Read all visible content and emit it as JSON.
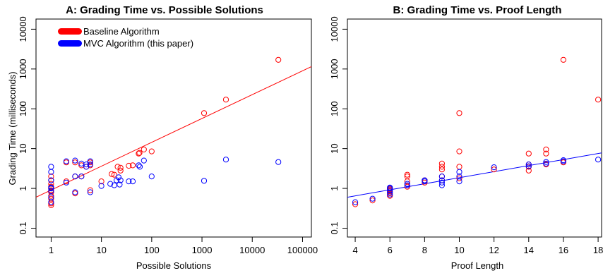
{
  "chart_data": [
    {
      "type": "scatter",
      "title": "A: Grading Time vs. Possible Solutions",
      "xlabel": "Possible Solutions",
      "ylabel": "Grading Time (milliseconds)",
      "xscale": "log",
      "yscale": "log",
      "xlim": [
        0.5,
        150000
      ],
      "ylim": [
        0.06,
        18000
      ],
      "x_ticks": [
        1,
        10,
        100,
        1000,
        10000,
        100000
      ],
      "x_tick_labels": [
        "1",
        "10",
        "100",
        "1000",
        "10000",
        "100000"
      ],
      "y_ticks": [
        0.1,
        1,
        10,
        100,
        1000,
        10000
      ],
      "y_tick_labels": [
        "0.1",
        "1",
        "10",
        "100",
        "1000",
        "10000"
      ],
      "legend": {
        "position": "top-left",
        "entries": [
          {
            "label": "Baseline Algorithm",
            "color": "#ff0000"
          },
          {
            "label": "MVC Algorithm (this paper)",
            "color": "#0000ff"
          }
        ]
      },
      "series": [
        {
          "name": "Baseline Algorithm",
          "color": "#ff0000",
          "points": [
            [
              1,
              0.38
            ],
            [
              1,
              0.42
            ],
            [
              1,
              0.55
            ],
            [
              1,
              0.65
            ],
            [
              1,
              0.8
            ],
            [
              1,
              0.9
            ],
            [
              1,
              1.0
            ],
            [
              1,
              1.1
            ],
            [
              1,
              1.3
            ],
            [
              1,
              1.6
            ],
            [
              1,
              2.0
            ],
            [
              2,
              1.5
            ],
            [
              2,
              4.5
            ],
            [
              3,
              0.75
            ],
            [
              3,
              2.0
            ],
            [
              3,
              4.5
            ],
            [
              4,
              2.0
            ],
            [
              4,
              3.8
            ],
            [
              5,
              3.5
            ],
            [
              6,
              0.9
            ],
            [
              6,
              3.8
            ],
            [
              6,
              4.5
            ],
            [
              10,
              1.5
            ],
            [
              16,
              2.3
            ],
            [
              18,
              2.2
            ],
            [
              21,
              3.5
            ],
            [
              24,
              2.8
            ],
            [
              24,
              3.3
            ],
            [
              35,
              3.7
            ],
            [
              42,
              3.8
            ],
            [
              55,
              7.5
            ],
            [
              57,
              7.8
            ],
            [
              70,
              9.5
            ],
            [
              100,
              8.5
            ],
            [
              1100,
              78
            ],
            [
              3000,
              170
            ],
            [
              33000,
              1700
            ]
          ]
        },
        {
          "name": "MVC Algorithm (this paper)",
          "color": "#0000ff",
          "points": [
            [
              1,
              0.45
            ],
            [
              1,
              0.6
            ],
            [
              1,
              0.85
            ],
            [
              1,
              1.0
            ],
            [
              1,
              1.05
            ],
            [
              1,
              1.6
            ],
            [
              1,
              2.6
            ],
            [
              1,
              3.5
            ],
            [
              2,
              1.4
            ],
            [
              2,
              4.8
            ],
            [
              3,
              0.8
            ],
            [
              3,
              2.0
            ],
            [
              3,
              5.0
            ],
            [
              4,
              2.0
            ],
            [
              4,
              4.2
            ],
            [
              5,
              3.5
            ],
            [
              5,
              4.0
            ],
            [
              6,
              0.8
            ],
            [
              6,
              4.0
            ],
            [
              6,
              4.8
            ],
            [
              10,
              1.15
            ],
            [
              15,
              1.3
            ],
            [
              18,
              1.2
            ],
            [
              20,
              1.6
            ],
            [
              22,
              1.9
            ],
            [
              23,
              1.25
            ],
            [
              24,
              1.6
            ],
            [
              35,
              1.5
            ],
            [
              42,
              1.5
            ],
            [
              55,
              3.8
            ],
            [
              58,
              3.5
            ],
            [
              70,
              5.0
            ],
            [
              100,
              2.0
            ],
            [
              1100,
              1.55
            ],
            [
              3000,
              5.3
            ],
            [
              33000,
              4.6
            ]
          ]
        }
      ],
      "fit_line": {
        "color": "#ff0000",
        "points": [
          [
            0.5,
            0.6
          ],
          [
            150000,
            1150
          ]
        ]
      }
    },
    {
      "type": "scatter",
      "title": "B: Grading Time vs. Proof Length",
      "xlabel": "Proof Length",
      "ylabel": "",
      "xscale": "linear",
      "yscale": "log",
      "xlim": [
        3.55,
        18.2
      ],
      "ylim": [
        0.06,
        18000
      ],
      "x_ticks": [
        4,
        6,
        8,
        10,
        12,
        14,
        16,
        18
      ],
      "x_tick_labels": [
        "4",
        "6",
        "8",
        "10",
        "12",
        "14",
        "16",
        "18"
      ],
      "y_ticks": [
        0.1,
        1,
        10,
        100,
        1000,
        10000
      ],
      "y_tick_labels": [
        "0.1",
        "1",
        "10",
        "100",
        "1000",
        "10000"
      ],
      "series": [
        {
          "name": "Baseline Algorithm",
          "color": "#ff0000",
          "points": [
            [
              4,
              0.4
            ],
            [
              5,
              0.5
            ],
            [
              6,
              0.65
            ],
            [
              6,
              0.75
            ],
            [
              6,
              0.85
            ],
            [
              6,
              0.95
            ],
            [
              6,
              1.0
            ],
            [
              7,
              1.1
            ],
            [
              7,
              1.5
            ],
            [
              7,
              2.0
            ],
            [
              7,
              2.2
            ],
            [
              8,
              1.4
            ],
            [
              8,
              1.6
            ],
            [
              9,
              1.6
            ],
            [
              9,
              2.0
            ],
            [
              9,
              3.0
            ],
            [
              9,
              3.5
            ],
            [
              9,
              4.2
            ],
            [
              10,
              1.8
            ],
            [
              10,
              3.5
            ],
            [
              10,
              8.5
            ],
            [
              10,
              78
            ],
            [
              12,
              3.0
            ],
            [
              14,
              2.8
            ],
            [
              14,
              3.5
            ],
            [
              14,
              4.0
            ],
            [
              14,
              7.5
            ],
            [
              15,
              4.0
            ],
            [
              15,
              7.5
            ],
            [
              15,
              9.5
            ],
            [
              16,
              4.5
            ],
            [
              16,
              1700
            ],
            [
              18,
              170
            ]
          ]
        },
        {
          "name": "MVC Algorithm (this paper)",
          "color": "#0000ff",
          "points": [
            [
              4,
              0.45
            ],
            [
              5,
              0.55
            ],
            [
              6,
              0.7
            ],
            [
              6,
              0.8
            ],
            [
              6,
              0.9
            ],
            [
              6,
              1.0
            ],
            [
              6,
              1.05
            ],
            [
              7,
              1.2
            ],
            [
              7,
              1.3
            ],
            [
              8,
              1.5
            ],
            [
              8,
              1.6
            ],
            [
              9,
              1.2
            ],
            [
              9,
              1.4
            ],
            [
              9,
              1.6
            ],
            [
              9,
              2.0
            ],
            [
              10,
              1.5
            ],
            [
              10,
              2.0
            ],
            [
              10,
              2.6
            ],
            [
              12,
              3.4
            ],
            [
              14,
              3.6
            ],
            [
              14,
              4.0
            ],
            [
              15,
              4.2
            ],
            [
              15,
              4.6
            ],
            [
              16,
              4.8
            ],
            [
              16,
              5.1
            ],
            [
              18,
              5.3
            ]
          ]
        }
      ],
      "fit_line": {
        "color": "#0000ff",
        "points": [
          [
            3.55,
            0.6
          ],
          [
            18.2,
            7.8
          ]
        ]
      }
    }
  ]
}
